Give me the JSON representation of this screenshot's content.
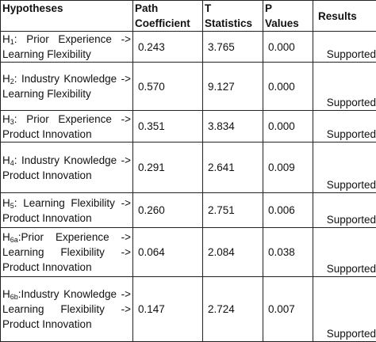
{
  "headers": {
    "hypotheses": "Hypotheses",
    "path_coefficient_1": "Path",
    "path_coefficient_2": "Coefficient",
    "t_statistics_1": "T",
    "t_statistics_2": "Statistics",
    "p_values_1": "P",
    "p_values_2": "Values",
    "results": "Results"
  },
  "rows": [
    {
      "id": "H",
      "sub": "1",
      "text": ": Prior Experience -> Learning Flexibility",
      "path": "0.243",
      "t": "3.765",
      "p": "0.000",
      "result": "Supported"
    },
    {
      "id": "H",
      "sub": "2",
      "text": ": Industry Knowledge -> Learning Flexibility",
      "path": "0.570",
      "t": "9.127",
      "p": "0.000",
      "result": "Supported"
    },
    {
      "id": "H",
      "sub": "3",
      "text": ": Prior Experience -> Product Innovation",
      "path": "0.351",
      "t": "3.834",
      "p": "0.000",
      "result": "Supported"
    },
    {
      "id": "H",
      "sub": "4",
      "text": ": Industry Knowledge -> Product Innovation",
      "path": "0.291",
      "t": "2.641",
      "p": "0.009",
      "result": "Supported"
    },
    {
      "id": "H",
      "sub": "5",
      "text": ": Learning Flexibility -> Product Innovation",
      "path": "0.260",
      "t": "2.751",
      "p": "0.006",
      "result": "Supported"
    },
    {
      "id": "H",
      "sub": "6a",
      "text": ":Prior Experience -> Learning Flexibility -> Product Innovation",
      "path": "0.064",
      "t": "2.084",
      "p": "0.038",
      "result": "Supported"
    },
    {
      "id": "H",
      "sub": "6b",
      "text": ":Industry Knowledge -> Learning Flexibility -> Product Innovation",
      "path": "0.147",
      "t": "2.724",
      "p": "0.007",
      "result": "Supported"
    }
  ]
}
